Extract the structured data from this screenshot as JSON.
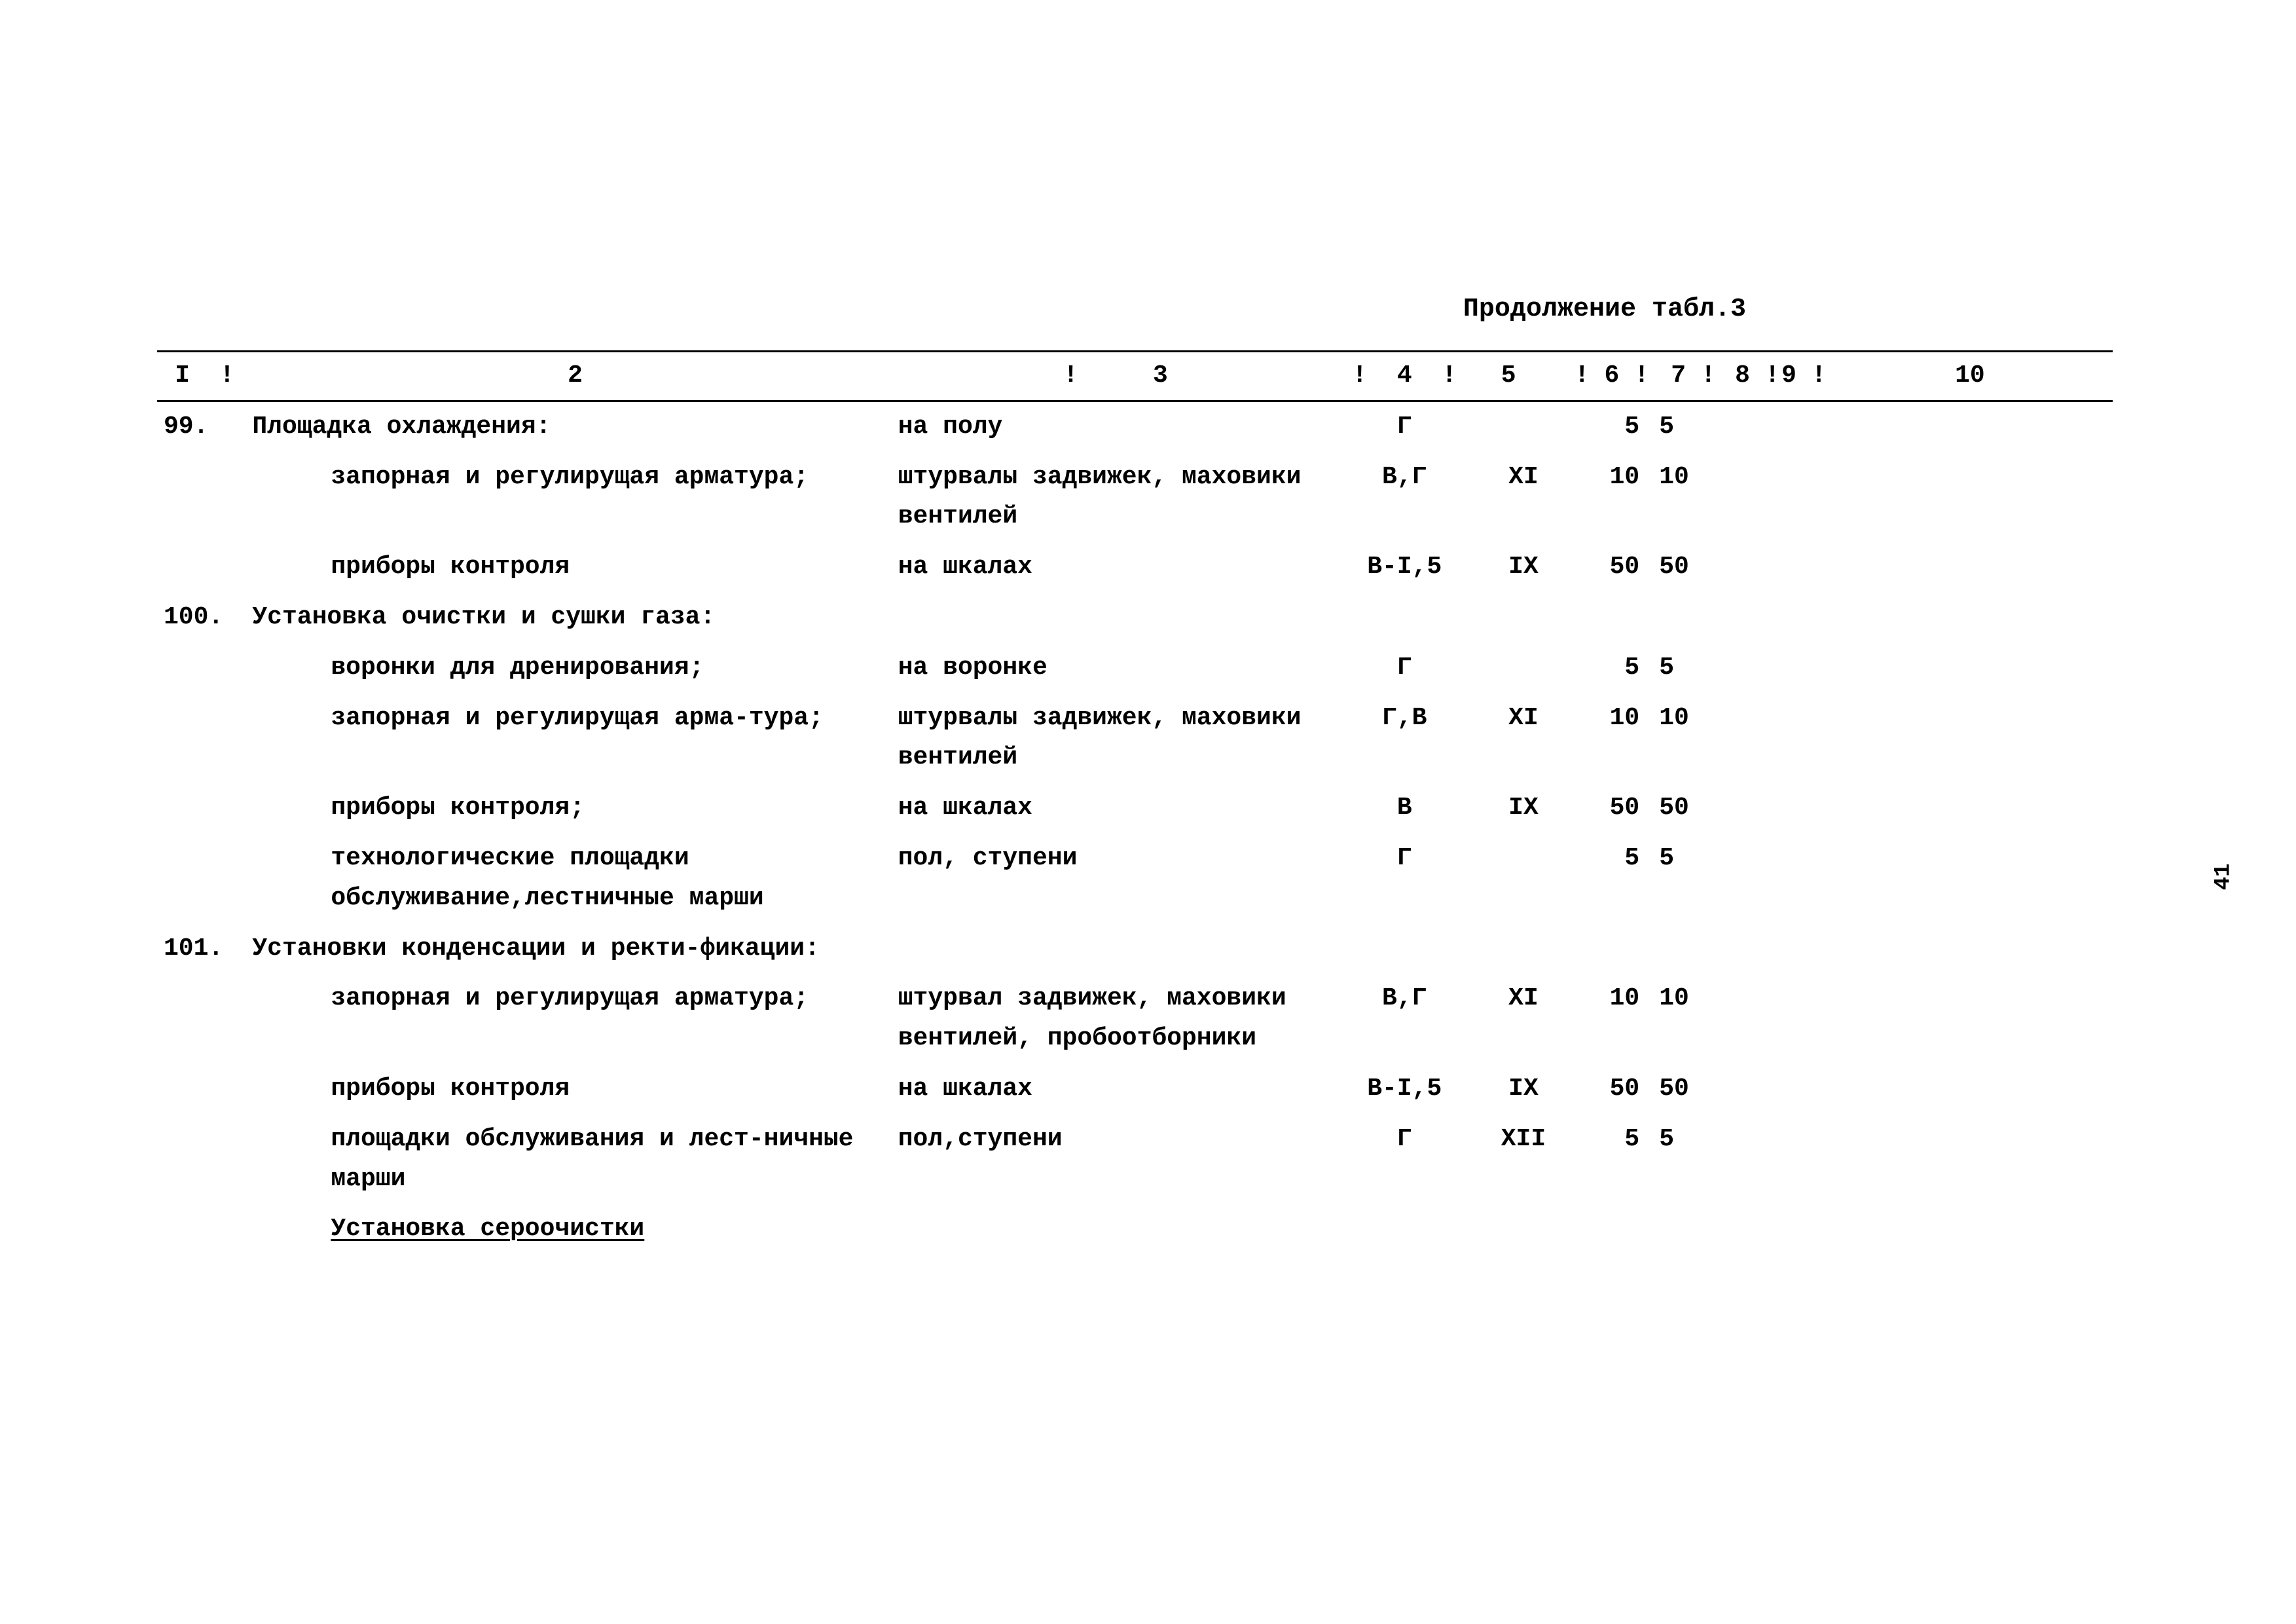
{
  "page_number": "41",
  "caption": "Продолжение табл.3",
  "header": {
    "c1": "I",
    "c2": "2",
    "c3": "3",
    "c4": "4",
    "c5": "5",
    "c6": "6",
    "c7": "7",
    "c8": "8",
    "c9": "9",
    "c10": "10"
  },
  "rows": [
    {
      "num": "99.",
      "c2": "Площадка охлаждения:",
      "c3": "на полу",
      "c4": "Г",
      "c5": "",
      "c6": "5",
      "c7": "5"
    },
    {
      "num": "",
      "c2": "запорная и регулирущая арматура;",
      "c3": "штурвалы задвижек, маховики вентилей",
      "c4": "В,Г",
      "c5": "XI",
      "c6": "10",
      "c7": "10"
    },
    {
      "num": "",
      "c2": "приборы контроля",
      "c3": "на шкалах",
      "c4": "В-I,5",
      "c5": "IX",
      "c6": "50",
      "c7": "50"
    },
    {
      "num": "100.",
      "c2": "Установка очистки и сушки газа:",
      "c3": "",
      "c4": "",
      "c5": "",
      "c6": "",
      "c7": ""
    },
    {
      "num": "",
      "c2": "воронки для дренирования;",
      "c3": "на воронке",
      "c4": "Г",
      "c5": "",
      "c6": "5",
      "c7": "5"
    },
    {
      "num": "",
      "c2": "запорная и регулирущая арма-тура;",
      "c3": "штурвалы задвижек, маховики вентилей",
      "c4": "Г,В",
      "c5": "XI",
      "c6": "10",
      "c7": "10"
    },
    {
      "num": "",
      "c2": "приборы контроля;",
      "c3": "на шкалах",
      "c4": "В",
      "c5": "IX",
      "c6": "50",
      "c7": "50"
    },
    {
      "num": "",
      "c2": "технологические площадки обслуживание,лестничные марши",
      "c3": "пол, ступени",
      "c4": "Г",
      "c5": "",
      "c6": "5",
      "c7": "5"
    },
    {
      "num": "101.",
      "c2": "Установки конденсации и ректи-фикации:",
      "c3": "",
      "c4": "",
      "c5": "",
      "c6": "",
      "c7": ""
    },
    {
      "num": "",
      "c2": "запорная и регулирущая арматура;",
      "c3": "штурвал задвижек, маховики вентилей, пробоотборники",
      "c4": "В,Г",
      "c5": "XI",
      "c6": "10",
      "c7": "10"
    },
    {
      "num": "",
      "c2": "приборы контроля",
      "c3": "на шкалах",
      "c4": "В-I,5",
      "c5": "IX",
      "c6": "50",
      "c7": "50"
    },
    {
      "num": "",
      "c2": "площадки обслуживания и лест-ничные марши",
      "c3": "пол,ступени",
      "c4": "Г",
      "c5": "XII",
      "c6": "5",
      "c7": "5"
    },
    {
      "num": "",
      "c2": "Установка сероочистки",
      "c3": "",
      "c4": "",
      "c5": "",
      "c6": "",
      "c7": "",
      "underline": true
    }
  ]
}
